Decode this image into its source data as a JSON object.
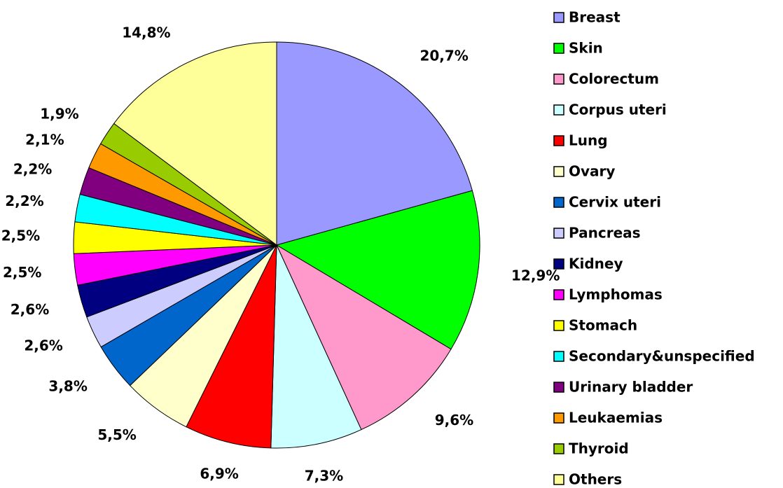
{
  "chart_data": {
    "type": "pie",
    "categories": [
      "Breast",
      "Skin",
      "Colorectum",
      "Corpus uteri",
      "Lung",
      "Ovary",
      "Cervix uteri",
      "Pancreas",
      "Kidney",
      "Lymphomas",
      "Stomach",
      "Secondary&unspecified",
      "Urinary bladder",
      "Leukaemias",
      "Thyroid",
      "Others"
    ],
    "values": [
      20.7,
      12.9,
      9.6,
      7.3,
      6.9,
      5.5,
      3.8,
      2.6,
      2.6,
      2.5,
      2.5,
      2.2,
      2.2,
      2.1,
      1.9,
      14.8
    ],
    "value_labels": [
      "20,7%",
      "12,9%",
      "9,6%",
      "7,3%",
      "6,9%",
      "5,5%",
      "3,8%",
      "2,6%",
      "2,6%",
      "2,5%",
      "2,5%",
      "2,2%",
      "2,2%",
      "2,1%",
      "1,9%",
      "14,8%"
    ],
    "colors": [
      "#9999ff",
      "#00ff00",
      "#ff99cc",
      "#ccffff",
      "#ff0000",
      "#ffffcc",
      "#0066cc",
      "#ccccff",
      "#000080",
      "#ff00ff",
      "#ffff00",
      "#00ffff",
      "#800080",
      "#ff9900",
      "#99cc00",
      "#ffff99"
    ],
    "legend": "right"
  }
}
